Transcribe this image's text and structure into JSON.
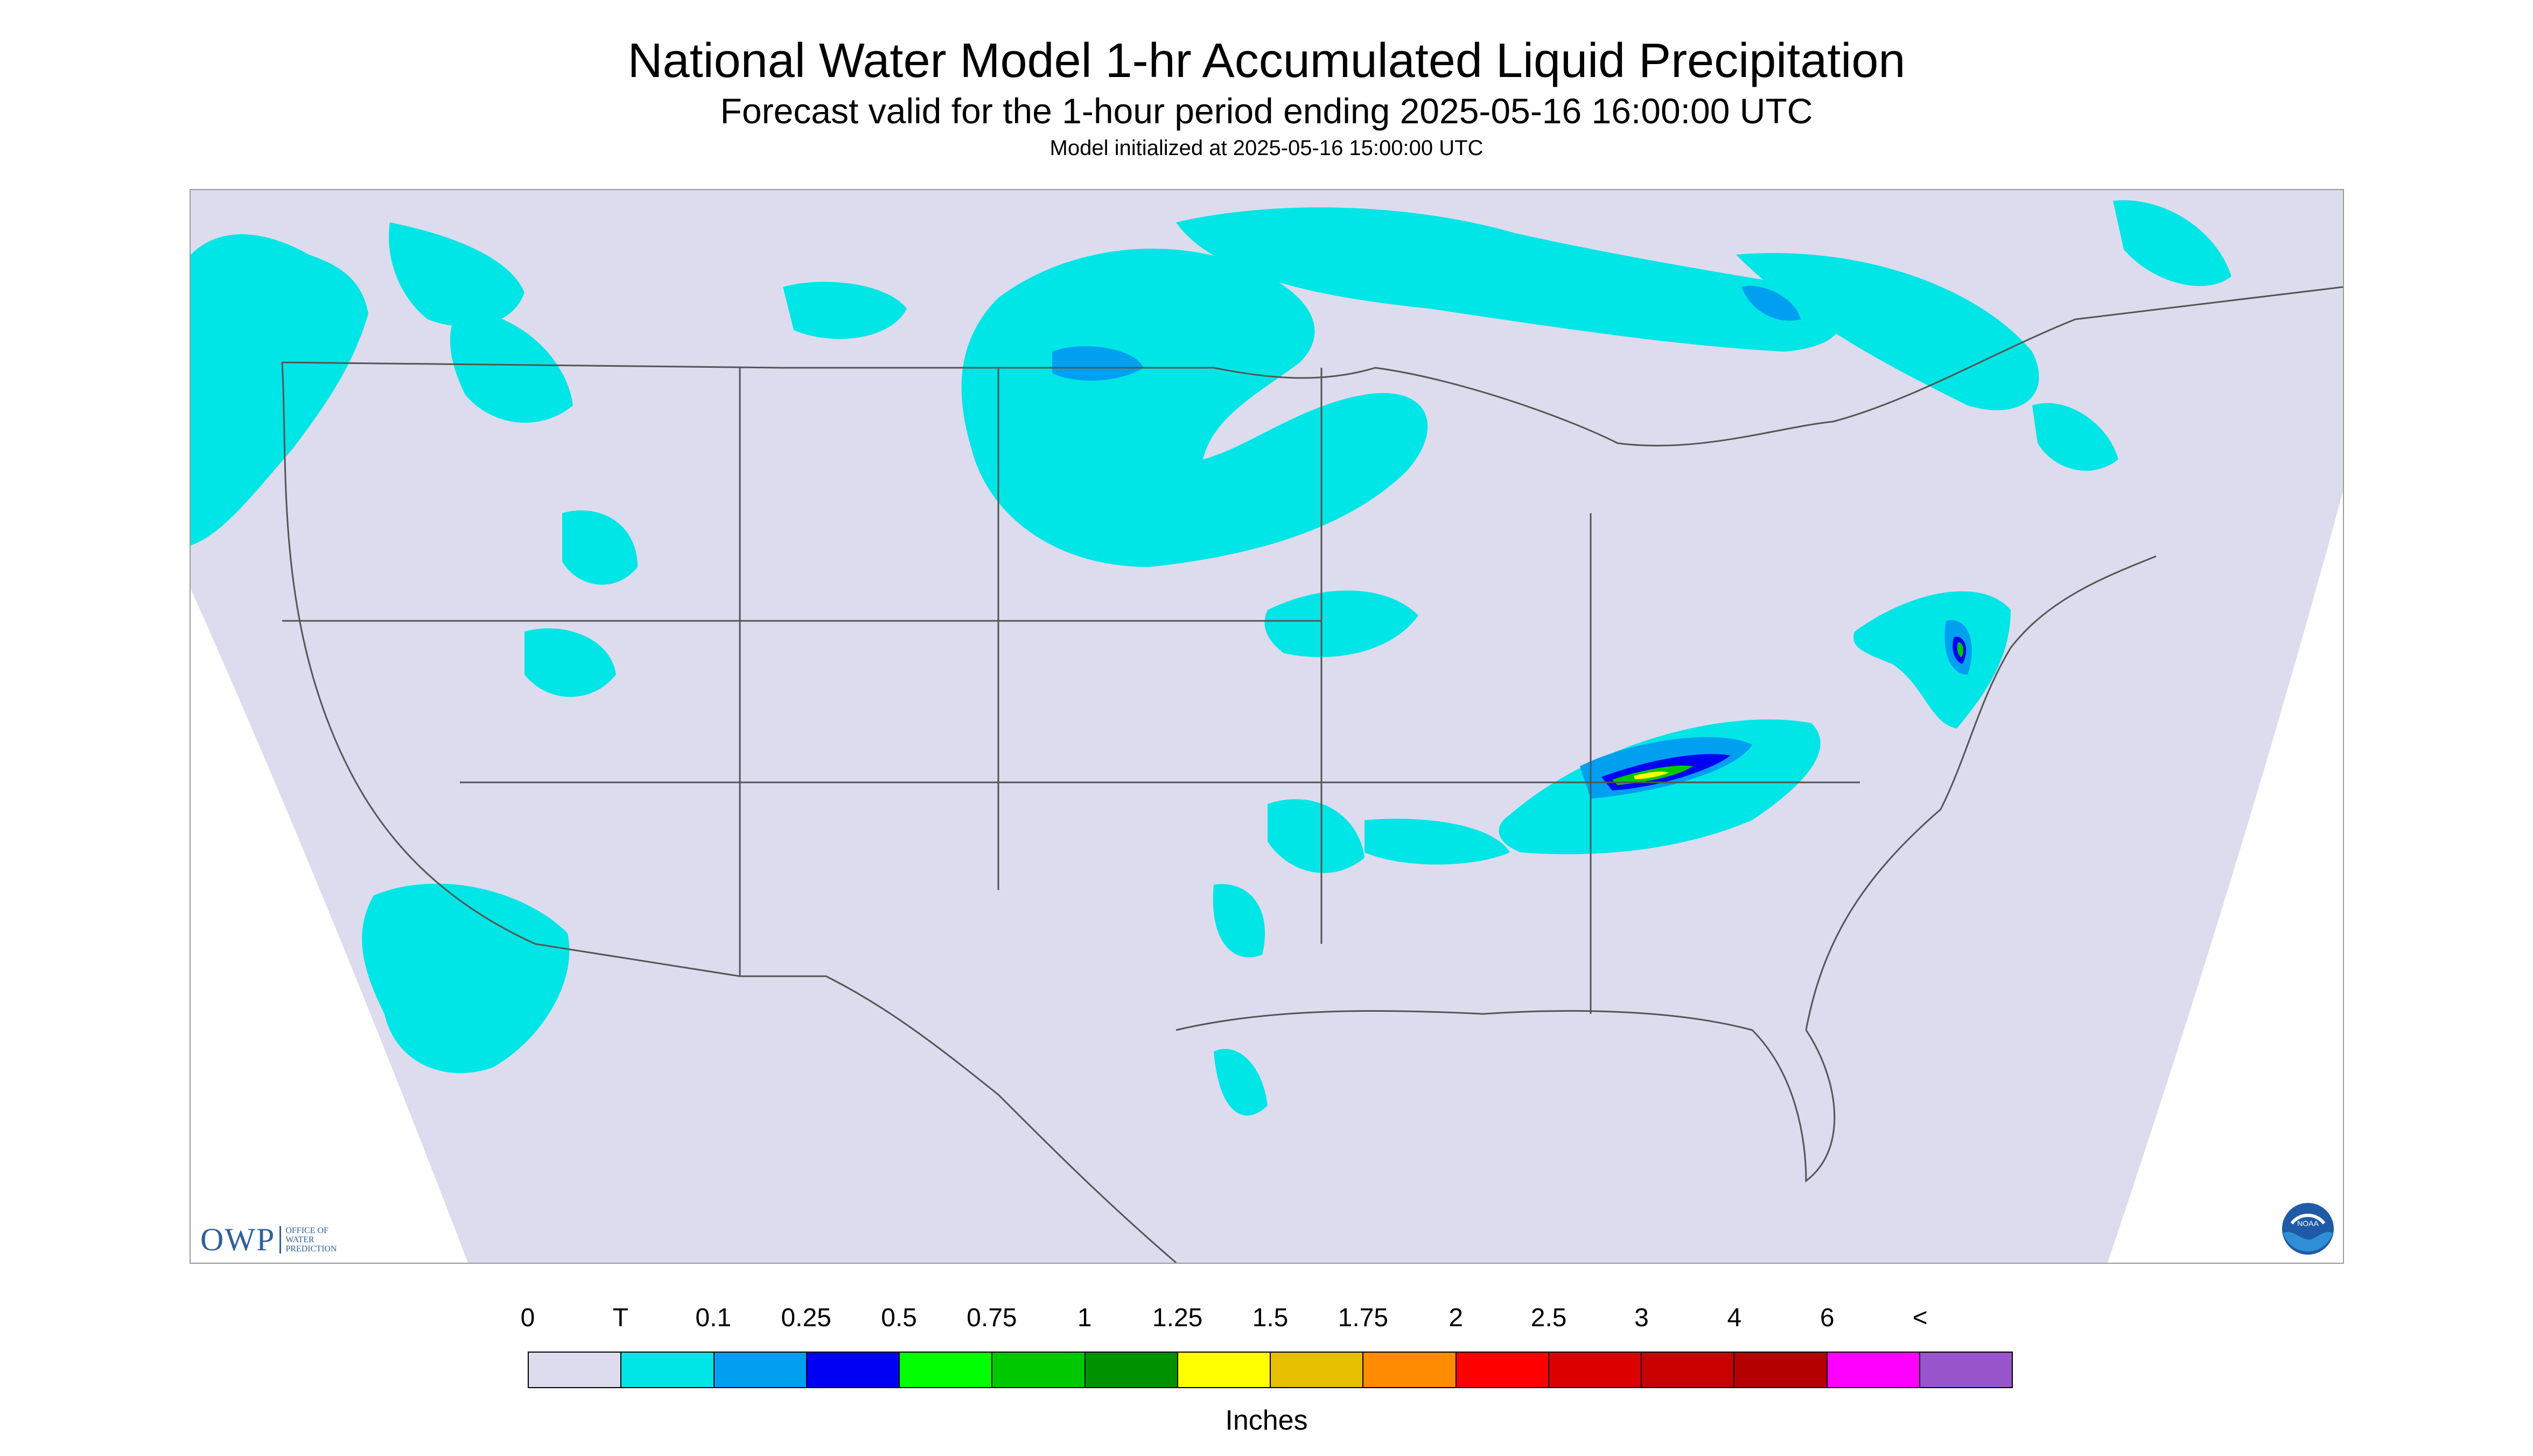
{
  "header": {
    "title": "National Water Model 1-hr Accumulated Liquid Precipitation",
    "subtitle": "Forecast valid for the 1-hour period ending 2025-05-16 16:00:00 UTC",
    "init_line": "Model initialized at 2025-05-16 15:00:00 UTC"
  },
  "map": {
    "projection_fill": "#dcdcee",
    "outside_fill": "#ffffff",
    "border_color": "#555555",
    "coverage": {
      "Pacific Northwest": "trace",
      "Northern Plains (Dakotas / Minnesota)": "trace to 0.25",
      "Great Lakes / Ontario": "trace to 0.25",
      "Tennessee / Kentucky": "trace to 1",
      "Mid-Atlantic (Pennsylvania / New Jersey)": "trace to 0.75",
      "Southern Plains / Texas": "trace",
      "Baja California / Northwest Mexico": "trace"
    }
  },
  "logos": {
    "owp_text": "OWP",
    "owp_sub": [
      "OFFICE OF",
      "WATER",
      "PREDICTION"
    ],
    "noaa_text": "NOAA"
  },
  "legend": {
    "labels": [
      "0",
      "T",
      "0.1",
      "0.25",
      "0.5",
      "0.75",
      "1",
      "1.25",
      "1.5",
      "1.75",
      "2",
      "2.5",
      "3",
      "4",
      "6",
      "<"
    ],
    "colors": [
      "#dcdcee",
      "#00e6e6",
      "#009ff0",
      "#0000f5",
      "#00ff00",
      "#00c800",
      "#009100",
      "#ffff00",
      "#e6bf00",
      "#ff8c00",
      "#ff0000",
      "#dc0000",
      "#c80000",
      "#b40000",
      "#ff00ff",
      "#9955cc"
    ],
    "units": "Inches"
  }
}
